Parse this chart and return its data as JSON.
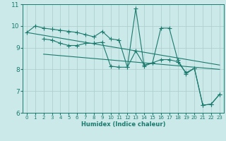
{
  "xlabel": "Humidex (Indice chaleur)",
  "xlim": [
    -0.5,
    23.5
  ],
  "ylim": [
    6,
    11
  ],
  "yticks": [
    6,
    7,
    8,
    9,
    10,
    11
  ],
  "xticks": [
    0,
    1,
    2,
    3,
    4,
    5,
    6,
    7,
    8,
    9,
    10,
    11,
    12,
    13,
    14,
    15,
    16,
    17,
    18,
    19,
    20,
    21,
    22,
    23
  ],
  "bg_color": "#cce9e9",
  "grid_color": "#aacccc",
  "line_color": "#1a7a6e",
  "series": [
    {
      "x": [
        0,
        1,
        2,
        3,
        4,
        5,
        6,
        7,
        8,
        9,
        10,
        11,
        12,
        13,
        14,
        15,
        16,
        17,
        18,
        19,
        20,
        21,
        22,
        23
      ],
      "y": [
        9.7,
        10.0,
        9.9,
        9.85,
        9.8,
        9.75,
        9.7,
        9.6,
        9.5,
        9.75,
        9.4,
        9.35,
        8.1,
        10.8,
        8.15,
        8.3,
        9.9,
        9.9,
        8.45,
        7.8,
        8.05,
        6.35,
        6.4,
        6.85
      ],
      "marker": "+",
      "markersize": 4
    },
    {
      "x": [
        2,
        3,
        4,
        5,
        6,
        7,
        8,
        9,
        10,
        11,
        12,
        13,
        14,
        15,
        16,
        17,
        18,
        19,
        20,
        21,
        22,
        23
      ],
      "y": [
        9.4,
        9.35,
        9.2,
        9.1,
        9.1,
        9.2,
        9.2,
        9.25,
        8.15,
        8.1,
        8.1,
        8.85,
        8.2,
        8.3,
        8.45,
        8.45,
        8.35,
        7.85,
        8.05,
        6.35,
        6.4,
        6.85
      ],
      "marker": "+",
      "markersize": 4
    },
    {
      "x": [
        0,
        23
      ],
      "y": [
        9.7,
        8.2
      ],
      "marker": null,
      "markersize": 0
    },
    {
      "x": [
        2,
        23
      ],
      "y": [
        8.7,
        8.0
      ],
      "marker": null,
      "markersize": 0
    }
  ]
}
